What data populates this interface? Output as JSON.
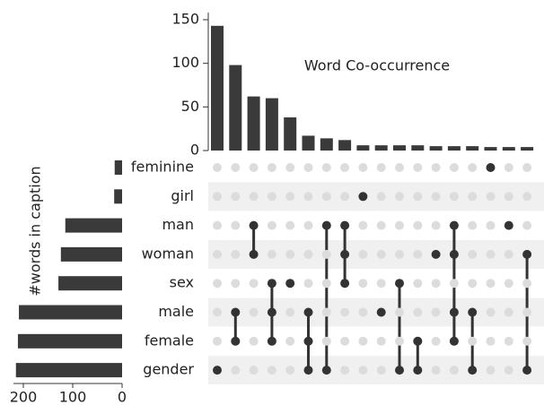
{
  "chart_data": {
    "type": "upset",
    "title": "Word Co-occurrence",
    "set_axis_label": "#words in caption",
    "color": "#3a3a3a",
    "sets": [
      "feminine",
      "girl",
      "man",
      "woman",
      "sex",
      "male",
      "female",
      "gender"
    ],
    "set_sizes": [
      15,
      16,
      115,
      124,
      129,
      209,
      211,
      215
    ],
    "set_xlim": [
      0,
      220
    ],
    "set_xticks": [
      0,
      100,
      200
    ],
    "ylim": [
      0,
      150
    ],
    "yticks": [
      0,
      50,
      100,
      150
    ],
    "values": [
      143,
      98,
      62,
      60,
      38,
      17,
      14,
      12,
      6,
      6,
      6,
      6,
      5,
      5,
      5,
      4,
      4,
      4
    ],
    "members": [
      [
        "gender"
      ],
      [
        "male",
        "female"
      ],
      [
        "man",
        "woman"
      ],
      [
        "sex",
        "male",
        "female"
      ],
      [
        "sex"
      ],
      [
        "male",
        "female",
        "gender"
      ],
      [
        "man",
        "gender"
      ],
      [
        "man",
        "woman",
        "sex"
      ],
      [
        "girl"
      ],
      [
        "male"
      ],
      [
        "sex",
        "gender"
      ],
      [
        "female",
        "gender"
      ],
      [
        "woman"
      ],
      [
        "man",
        "woman",
        "male",
        "female"
      ],
      [
        "male",
        "gender"
      ],
      [
        "feminine"
      ],
      [
        "man"
      ],
      [
        "woman",
        "gender"
      ]
    ]
  }
}
